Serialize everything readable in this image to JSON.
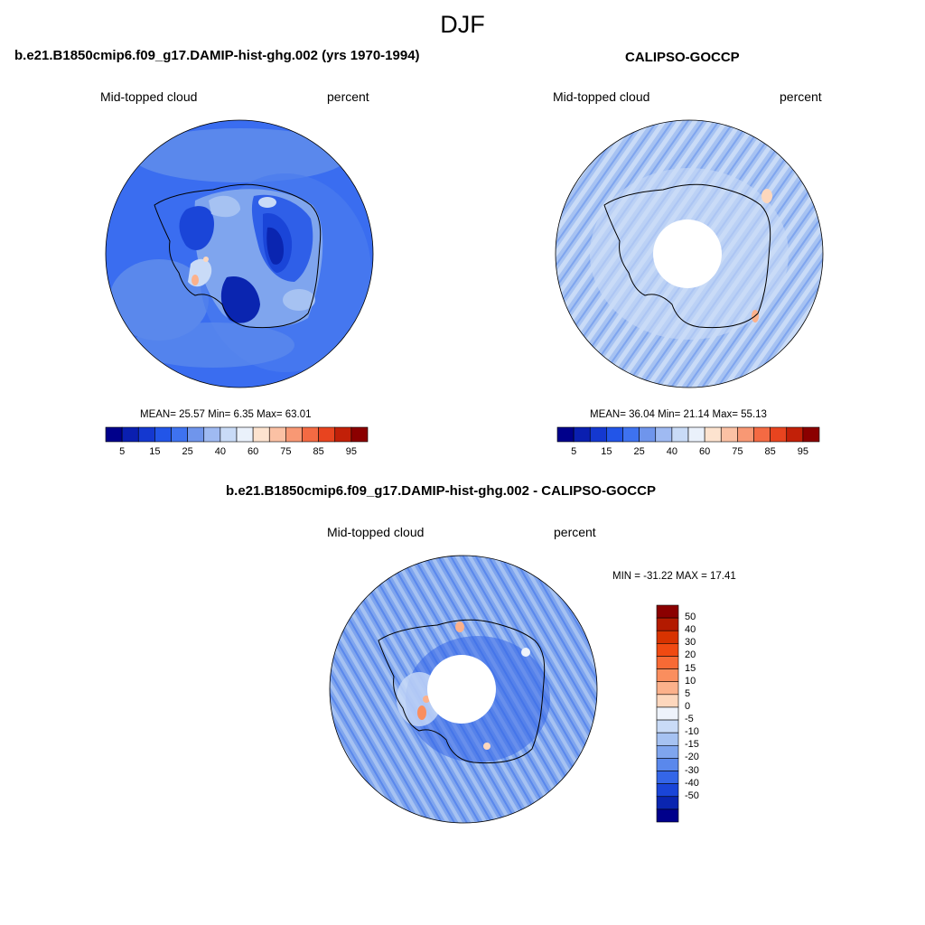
{
  "title": "DJF",
  "panels": [
    {
      "title": "b.e21.B1850cmip6.f09_g17.DAMIP-hist-ghg.002 (yrs 1970-1994)",
      "left_label": "Mid-topped cloud",
      "right_label": "percent",
      "stats": "MEAN=  25.57  Min=   6.35  Max=  63.01"
    },
    {
      "title": "CALIPSO-GOCCP",
      "left_label": "Mid-topped cloud",
      "right_label": "percent",
      "stats": "MEAN=  36.04  Min=  21.14  Max=  55.13"
    },
    {
      "title": "b.e21.B1850cmip6.f09_g17.DAMIP-hist-ghg.002 - CALIPSO-GOCCP",
      "left_label": "Mid-topped cloud",
      "right_label": "percent",
      "stats": "MIN = -31.22 MAX =  17.41"
    }
  ],
  "colorbar_abs": {
    "colors": [
      "#00008b",
      "#0a1fb0",
      "#1438d0",
      "#2255e8",
      "#3e72f0",
      "#6f95ec",
      "#9fbaf2",
      "#c9dbf7",
      "#eaf1fb",
      "#fde3cf",
      "#fbc1a4",
      "#f89874",
      "#f46a43",
      "#e8441f",
      "#c22008",
      "#8b0000"
    ],
    "ticks": [
      "5",
      "15",
      "25",
      "40",
      "60",
      "75",
      "85",
      "95"
    ]
  },
  "colorbar_diff": {
    "colors": [
      "#8b0000",
      "#b31a00",
      "#d83300",
      "#f04a12",
      "#f86a35",
      "#fa8e5e",
      "#fcb18b",
      "#fdd7bd",
      "#eef3fb",
      "#c9dbf7",
      "#a6c2f2",
      "#7fa5ee",
      "#5a88ec",
      "#3466e8",
      "#1a45d8",
      "#0a25b0",
      "#00008b"
    ],
    "ticks": [
      "50",
      "40",
      "30",
      "20",
      "15",
      "10",
      "5",
      "0",
      "-5",
      "-10",
      "-15",
      "-20",
      "-30",
      "-40",
      "-50"
    ]
  }
}
